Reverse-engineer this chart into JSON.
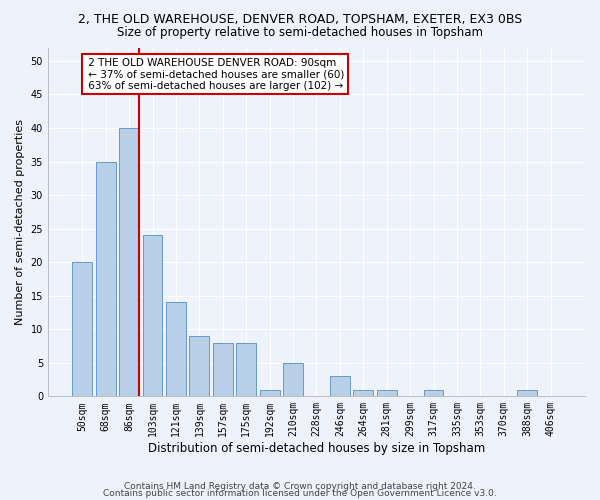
{
  "title": "2, THE OLD WAREHOUSE, DENVER ROAD, TOPSHAM, EXETER, EX3 0BS",
  "subtitle": "Size of property relative to semi-detached houses in Topsham",
  "xlabel": "Distribution of semi-detached houses by size in Topsham",
  "ylabel": "Number of semi-detached properties",
  "categories": [
    "50sqm",
    "68sqm",
    "86sqm",
    "103sqm",
    "121sqm",
    "139sqm",
    "157sqm",
    "175sqm",
    "192sqm",
    "210sqm",
    "228sqm",
    "246sqm",
    "264sqm",
    "281sqm",
    "299sqm",
    "317sqm",
    "335sqm",
    "353sqm",
    "370sqm",
    "388sqm",
    "406sqm"
  ],
  "values": [
    20,
    35,
    40,
    24,
    14,
    9,
    8,
    8,
    1,
    5,
    0,
    3,
    1,
    1,
    0,
    1,
    0,
    0,
    0,
    1,
    0
  ],
  "bar_color": "#b8cfe8",
  "bar_edge_color": "#6699cc",
  "red_line_x": 2.43,
  "red_line_label": "2 THE OLD WAREHOUSE DENVER ROAD: 90sqm",
  "smaller_pct": "37% of semi-detached houses are smaller (60)",
  "larger_pct": "63% of semi-detached houses are larger (102)",
  "annotation_box_color": "#ffffff",
  "annotation_box_edge_color": "#cc0000",
  "red_line_color": "#cc0000",
  "ylim": [
    0,
    52
  ],
  "yticks": [
    0,
    5,
    10,
    15,
    20,
    25,
    30,
    35,
    40,
    45,
    50
  ],
  "footer1": "Contains HM Land Registry data © Crown copyright and database right 2024.",
  "footer2": "Contains public sector information licensed under the Open Government Licence v3.0.",
  "background_color": "#eef2fb",
  "grid_color": "#ffffff",
  "title_fontsize": 9,
  "subtitle_fontsize": 8.5,
  "xlabel_fontsize": 8.5,
  "ylabel_fontsize": 8,
  "tick_fontsize": 7,
  "annotation_fontsize": 7.5,
  "footer_fontsize": 6.5
}
